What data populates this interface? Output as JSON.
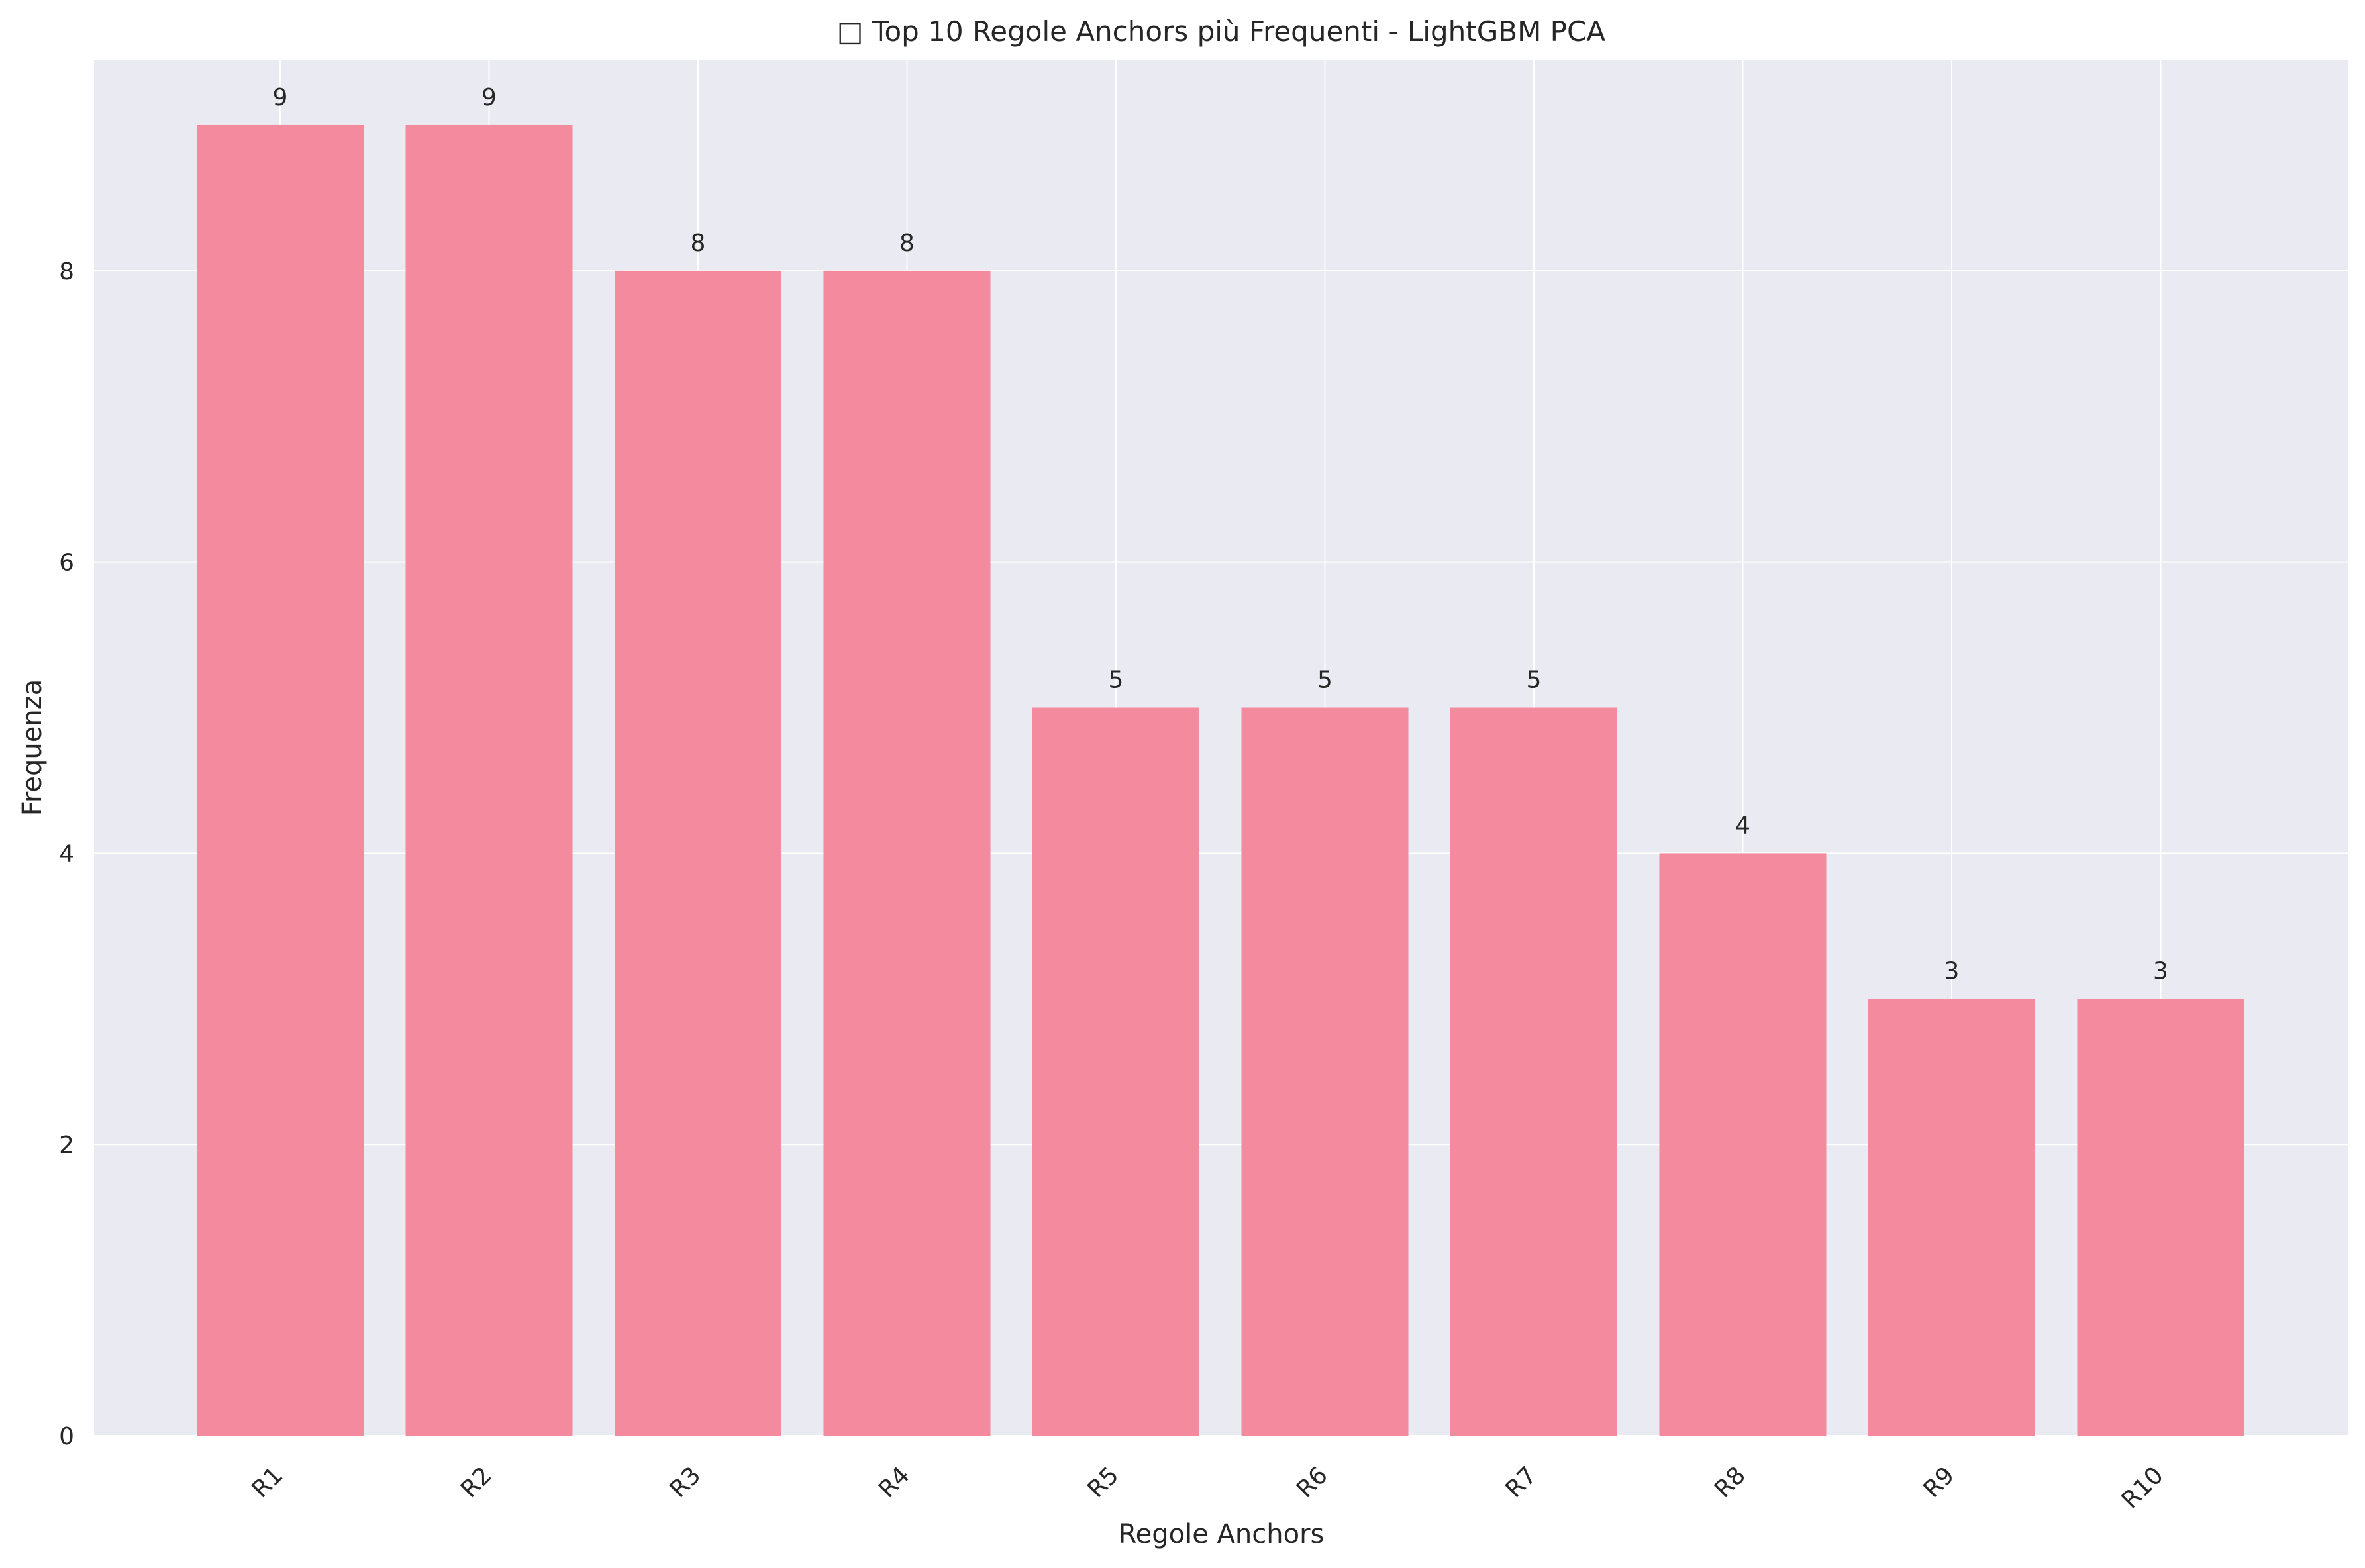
{
  "chart_data": {
    "type": "bar",
    "title": "□ Top 10 Regole Anchors più Frequenti - LightGBM PCA",
    "xlabel": "Regole Anchors",
    "ylabel": "Frequenza",
    "categories": [
      "R1",
      "R2",
      "R3",
      "R4",
      "R5",
      "R6",
      "R7",
      "R8",
      "R9",
      "R10"
    ],
    "values": [
      9,
      9,
      8,
      8,
      5,
      5,
      5,
      4,
      3,
      3
    ],
    "yticks": [
      0,
      2,
      4,
      6,
      8
    ],
    "ylim": [
      0,
      9.45
    ],
    "grid": true,
    "colors": {
      "bar": "#f48a9e",
      "plot_bg": "#eaeaf2",
      "grid": "#ffffff"
    }
  }
}
